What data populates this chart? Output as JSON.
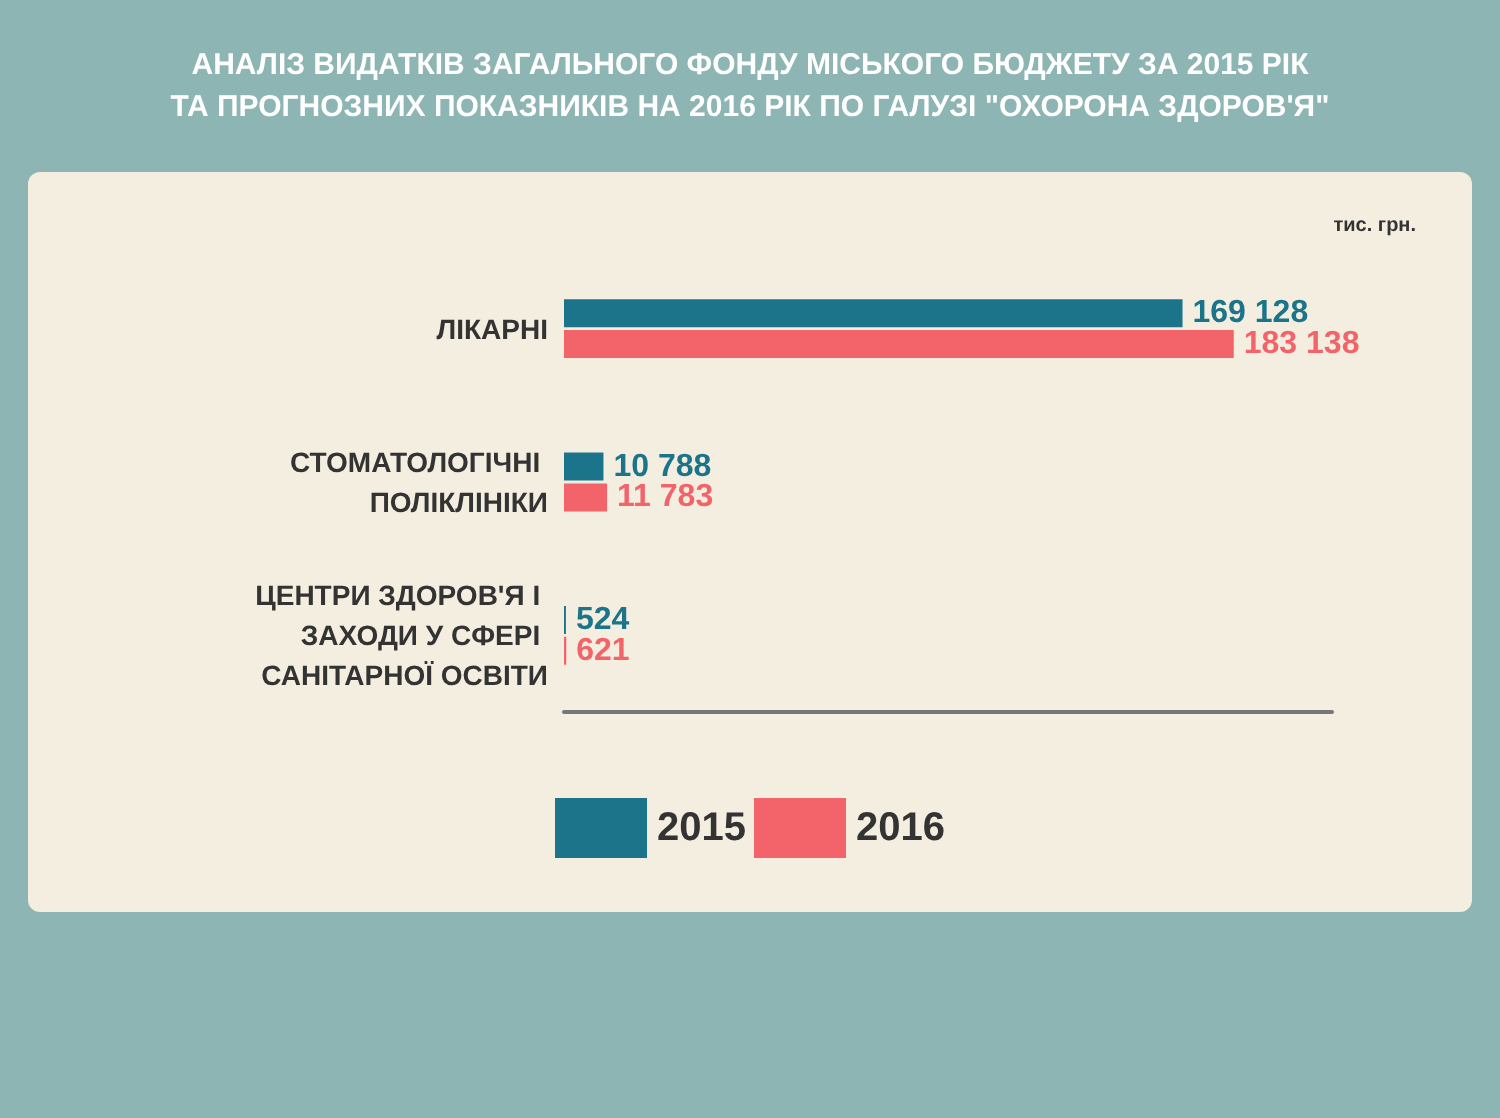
{
  "chart_data": {
    "type": "bar",
    "orientation": "horizontal",
    "title": "АНАЛІЗ ВИДАТКІВ ЗАГАЛЬНОГО ФОНДУ МІСЬКОГО БЮДЖЕТУ ЗА 2015 РІК\nТА ПРОГНОЗНИХ ПОКАЗНИКІВ НА 2016 РІК ПО ГАЛУЗІ \"ОХОРОНА ЗДОРОВ'Я\"",
    "annotations": [
      "тис. грн."
    ],
    "categories": [
      "ЛІКАРНІ",
      "СТОМАТОЛОГІЧНІ ПОЛІКЛІНІКИ",
      "ЦЕНТРИ ЗДОРОВ'Я І ЗАХОДИ У СФЕРІ САНІТАРНОЇ ОСВІТИ"
    ],
    "series": [
      {
        "name": "2015",
        "color": "#1b7489",
        "values": [
          169128,
          10788,
          524
        ],
        "value_labels": [
          "169 128",
          "10 788",
          "524"
        ]
      },
      {
        "name": "2016",
        "color": "#f2636a",
        "values": [
          183138,
          11783,
          621
        ],
        "value_labels": [
          "183 138",
          "11 783",
          "621"
        ]
      }
    ],
    "legend": "bottom",
    "tick_labels": "y",
    "grid": false
  }
}
